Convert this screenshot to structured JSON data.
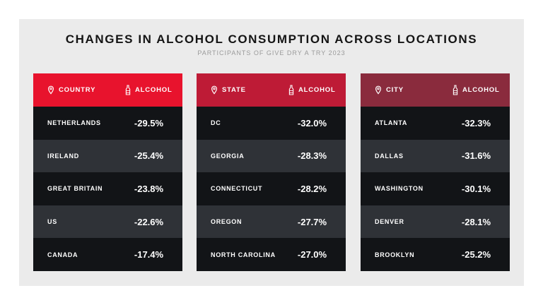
{
  "chart_data": {
    "type": "table",
    "title": "CHANGES IN ALCOHOL CONSUMPTION ACROSS LOCATIONS",
    "subtitle": "PARTICIPANTS OF GIVE DRY A TRY 2023",
    "tables": [
      {
        "header_location": "COUNTRY",
        "header_value": "ALCOHOL",
        "color": "#e8132d",
        "rows": [
          {
            "name": "NETHERLANDS",
            "value": "-29.5%"
          },
          {
            "name": "IRELAND",
            "value": "-25.4%"
          },
          {
            "name": "GREAT BRITAIN",
            "value": "-23.8%"
          },
          {
            "name": "US",
            "value": "-22.6%"
          },
          {
            "name": "CANADA",
            "value": "-17.4%"
          }
        ]
      },
      {
        "header_location": "STATE",
        "header_value": "ALCOHOL",
        "color": "#be1b36",
        "rows": [
          {
            "name": "DC",
            "value": "-32.0%"
          },
          {
            "name": "GEORGIA",
            "value": "-28.3%"
          },
          {
            "name": "CONNECTICUT",
            "value": "-28.2%"
          },
          {
            "name": "OREGON",
            "value": "-27.7%"
          },
          {
            "name": "NORTH CAROLINA",
            "value": "-27.0%"
          }
        ]
      },
      {
        "header_location": "CITY",
        "header_value": "ALCOHOL",
        "color": "#8a2b3d",
        "rows": [
          {
            "name": "ATLANTA",
            "value": "-32.3%"
          },
          {
            "name": "DALLAS",
            "value": "-31.6%"
          },
          {
            "name": "WASHINGTON",
            "value": "-30.1%"
          },
          {
            "name": "DENVER",
            "value": "-28.1%"
          },
          {
            "name": "BROOKLYN",
            "value": "-25.2%"
          }
        ]
      }
    ]
  }
}
